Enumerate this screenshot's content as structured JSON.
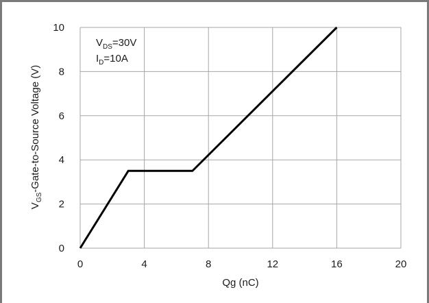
{
  "chart_data": {
    "type": "line",
    "xlabel": "Qg (nC)",
    "ylabel": "VGS-Gate-to-Source Voltage (V)",
    "ylabel_parts": {
      "main": "V",
      "sub": "GS",
      "rest": "-Gate-to-Source Voltage (V)"
    },
    "xlim": [
      0,
      20
    ],
    "ylim": [
      0,
      10
    ],
    "x_ticks": [
      0,
      4,
      8,
      12,
      16,
      20
    ],
    "y_ticks": [
      0,
      2,
      4,
      6,
      8,
      10
    ],
    "grid": true,
    "series": [
      {
        "x": [
          0,
          3,
          7,
          16
        ],
        "y": [
          0,
          3.5,
          3.5,
          10
        ]
      }
    ],
    "annotations": [
      {
        "text": "VDS=30V",
        "main": "V",
        "sub": "DS",
        "rest": "=30V"
      },
      {
        "text": "ID=10A",
        "main": "I",
        "sub": "D",
        "rest": "=10A"
      }
    ],
    "line_color": "#000000",
    "grid_color": "#a6a6a6"
  }
}
